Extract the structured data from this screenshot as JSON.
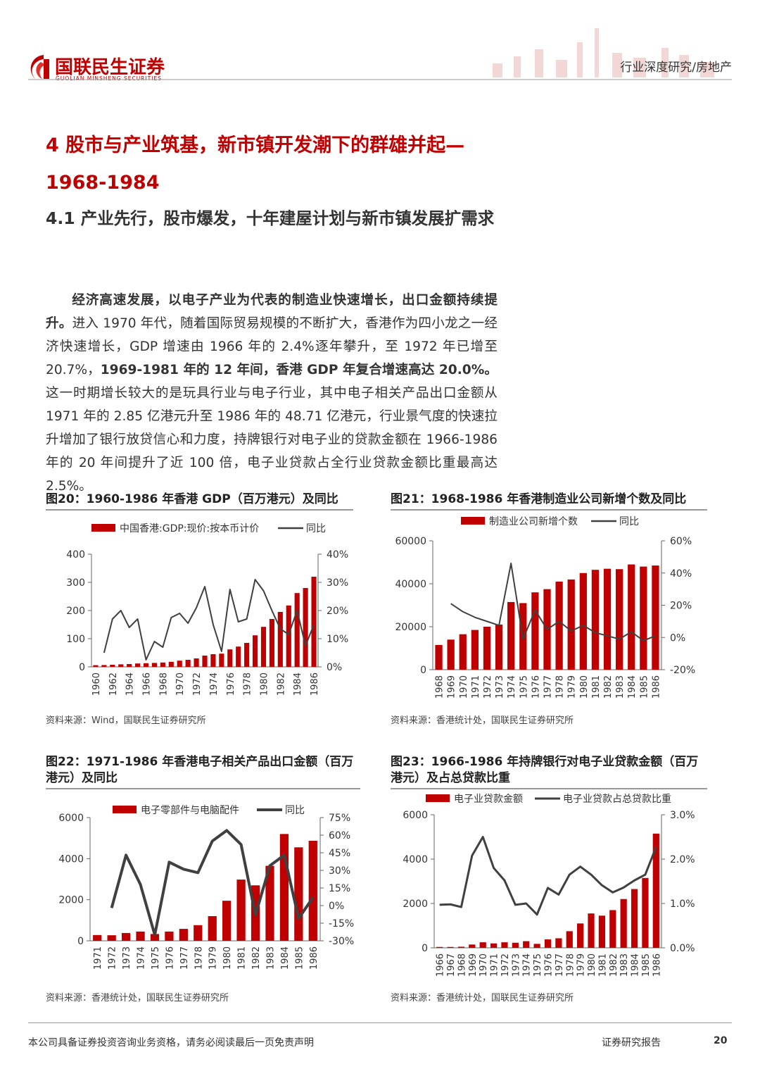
{
  "header": {
    "brand": "国联民生证券",
    "brand_en": "GUOLIAN MINSHENG SECURITIES",
    "section": "行业深度研究/房地产"
  },
  "headings": {
    "h1": "4 股市与产业筑基，新市镇开发潮下的群雄并起—1968-1984",
    "h2": "4.1 产业先行，股市爆发，十年建屋计划与新市镇发展扩需求"
  },
  "paragraph": [
    {
      "text": "经济高速发展，以电子产业为代表的制造业快速增长，出口金额持续提升。",
      "bold": true
    },
    {
      "text": "进入 1970 年代，随着国际贸易规模的不断扩大，香港作为四小龙之一经济快速增长，GDP 增速由 1966 年的 2.4%逐年攀升，至 1972 年已增至 20.7%，",
      "bold": false
    },
    {
      "text": "1969-1981 年的 12 年间，香港 GDP 年复合增速高达 20.0%。",
      "bold": true
    },
    {
      "text": "这一时期增长较大的是玩具行业与电子行业，其中电子相关产品出口金额从 1971 年的 2.85 亿港元升至 1986 年的 48.71 亿港元，行业景气度的快速拉升增加了银行放贷信心和力度，持牌银行对电子业的贷款金额在 1966-1986 年的 20 年间提升了近 100 倍，电子业贷款占全行业贷款金额比重最高达 2.5%。",
      "bold": false
    }
  ],
  "chart_data": [
    {
      "type": "bar_line",
      "title": "图20：1960-1986 年香港 GDP（百万港元）及同比",
      "source": "资料来源：Wind，国联民生证券研究所",
      "categories": [
        "1960",
        null,
        "1962",
        null,
        "1964",
        null,
        "1966",
        null,
        "1968",
        null,
        "1970",
        null,
        "1972",
        null,
        "1974",
        null,
        "1976",
        null,
        "1978",
        null,
        "1980",
        null,
        "1982",
        null,
        "1984",
        null,
        "1986"
      ],
      "series": [
        {
          "name": "中国香港:GDP:现价:按本币计价",
          "type": "bar",
          "color": "#c00000",
          "values": [
            6,
            6.5,
            7.5,
            9,
            10,
            12,
            13,
            14,
            15.5,
            18,
            22,
            25,
            30,
            40,
            45,
            47,
            62,
            72,
            85,
            112,
            142,
            170,
            195,
            218,
            262,
            280,
            320
          ]
        },
        {
          "name": "同比",
          "type": "line",
          "axis": "y2",
          "color": "#404040",
          "values": [
            null,
            5,
            17,
            20,
            14,
            17,
            2.5,
            9,
            7,
            17.5,
            19,
            15.5,
            21,
            28.5,
            15,
            5.5,
            27.5,
            16,
            17,
            31,
            27,
            20,
            13.5,
            11.5,
            20,
            7.5,
            15
          ]
        }
      ],
      "ylim": [
        0,
        400
      ],
      "yticks": [
        0,
        100,
        200,
        300,
        400
      ],
      "y2lim": [
        0,
        40
      ],
      "y2ticks": [
        {
          "value": 0,
          "label": "0%"
        },
        {
          "value": 10,
          "label": "10%"
        },
        {
          "value": 20,
          "label": "20%"
        },
        {
          "value": 30,
          "label": "30%"
        },
        {
          "value": 40,
          "label": "40%"
        }
      ]
    },
    {
      "type": "bar_line",
      "title": "图21：1968-1986 年香港制造业公司新增个数及同比",
      "source": "资料来源：香港统计处，国联民生证券研究所",
      "categories": [
        "1968",
        "1969",
        "1970",
        "1971",
        "1972",
        "1973",
        "1974",
        "1975",
        "1976",
        "1977",
        "1978",
        "1979",
        "1980",
        "1981",
        "1982",
        "1983",
        "1984",
        "1985",
        "1986"
      ],
      "series": [
        {
          "name": "制造业公司新增个数",
          "type": "bar",
          "color": "#c00000",
          "values": [
            11500,
            14000,
            16500,
            18500,
            20000,
            21000,
            31500,
            31000,
            36000,
            37500,
            41000,
            42000,
            45000,
            46500,
            47000,
            46800,
            49000,
            48000,
            48500
          ]
        },
        {
          "name": "同比",
          "type": "line",
          "axis": "y2",
          "color": "#404040",
          "values": [
            null,
            21,
            16,
            12.5,
            10,
            7.5,
            46,
            -1,
            17,
            5,
            10,
            4,
            7.5,
            3,
            1,
            -1,
            3.5,
            -2,
            1
          ]
        }
      ],
      "ylim": [
        0,
        60000
      ],
      "yticks": [
        0,
        20000,
        40000,
        60000
      ],
      "y2lim": [
        -20,
        60
      ],
      "y2ticks": [
        {
          "value": -20,
          "label": "-20%"
        },
        {
          "value": 0,
          "label": "0%"
        },
        {
          "value": 20,
          "label": "20%"
        },
        {
          "value": 40,
          "label": "40%"
        },
        {
          "value": 60,
          "label": "60%"
        }
      ]
    },
    {
      "type": "bar_line",
      "title": "图22：1971-1986 年香港电子相关产品出口金额（百万港元）及同比",
      "source": "资料来源：香港统计处，国联民生证券研究所",
      "categories": [
        "1971",
        "1972",
        "1973",
        "1974",
        "1975",
        "1976",
        "1977",
        "1978",
        "1979",
        "1980",
        "1981",
        "1982",
        "1983",
        "1984",
        "1985",
        "1986"
      ],
      "series": [
        {
          "name": "电子零部件与电脑配件",
          "type": "bar",
          "color": "#c00000",
          "values": [
            280,
            270,
            380,
            450,
            330,
            450,
            580,
            760,
            1200,
            1950,
            2980,
            2700,
            3650,
            5200,
            4550,
            4870
          ]
        },
        {
          "name": "同比",
          "type": "line",
          "axis": "y2",
          "color": "#404040",
          "values": [
            null,
            -2,
            43,
            18,
            -25,
            37,
            31,
            28,
            55,
            64,
            52,
            -8,
            34,
            43,
            -11,
            7
          ]
        }
      ],
      "ylim": [
        0,
        6000
      ],
      "yticks": [
        0,
        2000,
        4000,
        6000
      ],
      "y2lim": [
        -30,
        75
      ],
      "y2ticks": [
        {
          "value": -30,
          "label": "-30%"
        },
        {
          "value": -15,
          "label": "-15%"
        },
        {
          "value": 0,
          "label": "0%"
        },
        {
          "value": 15,
          "label": "15%"
        },
        {
          "value": 30,
          "label": "30%"
        },
        {
          "value": 45,
          "label": "45%"
        },
        {
          "value": 60,
          "label": "60%"
        },
        {
          "value": 75,
          "label": "75%"
        }
      ]
    },
    {
      "type": "bar_line",
      "title": "图23：1966-1986 年持牌银行对电子业贷款金额（百万港元）及占总贷款比重",
      "source": "资料来源：香港统计处，国联民生证券研究所",
      "categories": [
        "1966",
        "1967",
        "1968",
        "1969",
        "1970",
        "1971",
        "1972",
        "1973",
        "1974",
        "1975",
        "1976",
        "1977",
        "1978",
        "1979",
        "1980",
        "1981",
        "1982",
        "1983",
        "1984",
        "1985",
        "1986"
      ],
      "series": [
        {
          "name": "电子业贷款金额",
          "type": "bar",
          "color": "#c00000",
          "values": [
            40,
            40,
            50,
            150,
            250,
            200,
            250,
            230,
            300,
            180,
            380,
            430,
            750,
            1100,
            1550,
            1450,
            1700,
            2200,
            2650,
            3150,
            5150
          ]
        },
        {
          "name": "电子业贷款占总贷款比重",
          "type": "line",
          "axis": "y2",
          "color": "#404040",
          "values": [
            0.97,
            0.98,
            0.92,
            2.08,
            2.5,
            1.8,
            1.52,
            0.97,
            1.0,
            0.75,
            1.35,
            1.2,
            1.65,
            1.83,
            1.65,
            1.41,
            1.25,
            1.36,
            1.52,
            1.65,
            2.27
          ]
        }
      ],
      "ylim": [
        0,
        6000
      ],
      "yticks": [
        0,
        2000,
        4000,
        6000
      ],
      "y2lim": [
        0,
        3
      ],
      "y2ticks": [
        {
          "value": 0,
          "label": "0.0%"
        },
        {
          "value": 1,
          "label": "1.0%"
        },
        {
          "value": 2,
          "label": "2.0%"
        },
        {
          "value": 3,
          "label": "3.0%"
        }
      ]
    }
  ],
  "footer": {
    "disclaimer": "本公司具备证券投资咨询业务资格，请务必阅读最后一页免责声明",
    "report_type": "证券研究报告",
    "page": 20
  }
}
